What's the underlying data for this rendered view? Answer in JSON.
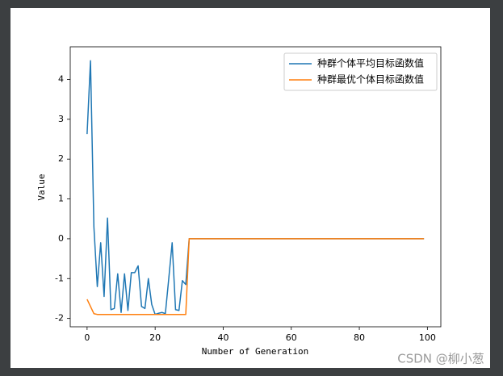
{
  "chart_data": {
    "type": "line",
    "xlabel": "Number of Generation",
    "ylabel": "Value",
    "x": [
      0,
      1,
      2,
      3,
      4,
      5,
      6,
      7,
      8,
      9,
      10,
      11,
      12,
      13,
      14,
      15,
      16,
      17,
      18,
      19,
      20,
      21,
      22,
      23,
      24,
      25,
      26,
      27,
      28,
      29,
      30,
      31,
      32,
      33,
      34,
      35,
      36,
      37,
      38,
      39,
      40,
      41,
      42,
      43,
      44,
      45,
      46,
      47,
      48,
      49,
      50,
      51,
      52,
      53,
      54,
      55,
      56,
      57,
      58,
      59,
      60,
      61,
      62,
      63,
      64,
      65,
      66,
      67,
      68,
      69,
      70,
      71,
      72,
      73,
      74,
      75,
      76,
      77,
      78,
      79,
      80,
      81,
      82,
      83,
      84,
      85,
      86,
      87,
      88,
      89,
      90,
      91,
      92,
      93,
      94,
      95,
      96,
      97,
      98,
      99
    ],
    "series": [
      {
        "name": "种群个体平均目标函数值",
        "color": "#1f77b4",
        "values": [
          2.63,
          4.47,
          0.3,
          -1.2,
          -0.1,
          -1.45,
          0.52,
          -1.78,
          -1.75,
          -0.88,
          -1.85,
          -0.88,
          -1.8,
          -0.85,
          -0.85,
          -0.68,
          -1.7,
          -1.75,
          -1.0,
          -1.65,
          -1.9,
          -1.87,
          -1.85,
          -1.88,
          -1.0,
          -0.1,
          -1.78,
          -1.8,
          -1.05,
          -1.15,
          0,
          0,
          0,
          0,
          0,
          0,
          0,
          0,
          0,
          0,
          0,
          0,
          0,
          0,
          0,
          0,
          0,
          0,
          0,
          0,
          0,
          0,
          0,
          0,
          0,
          0,
          0,
          0,
          0,
          0,
          0,
          0,
          0,
          0,
          0,
          0,
          0,
          0,
          0,
          0,
          0,
          0,
          0,
          0,
          0,
          0,
          0,
          0,
          0,
          0,
          0,
          0,
          0,
          0,
          0,
          0,
          0,
          0,
          0,
          0,
          0,
          0,
          0,
          0,
          0,
          0,
          0,
          0,
          0,
          0
        ]
      },
      {
        "name": "种群最优个体目标函数值",
        "color": "#ff7f0e",
        "values": [
          -1.52,
          -1.7,
          -1.88,
          -1.9,
          -1.9,
          -1.9,
          -1.9,
          -1.9,
          -1.9,
          -1.9,
          -1.9,
          -1.9,
          -1.9,
          -1.9,
          -1.9,
          -1.9,
          -1.9,
          -1.9,
          -1.9,
          -1.9,
          -1.9,
          -1.9,
          -1.9,
          -1.9,
          -1.9,
          -1.9,
          -1.9,
          -1.9,
          -1.9,
          -1.9,
          0,
          0,
          0,
          0,
          0,
          0,
          0,
          0,
          0,
          0,
          0,
          0,
          0,
          0,
          0,
          0,
          0,
          0,
          0,
          0,
          0,
          0,
          0,
          0,
          0,
          0,
          0,
          0,
          0,
          0,
          0,
          0,
          0,
          0,
          0,
          0,
          0,
          0,
          0,
          0,
          0,
          0,
          0,
          0,
          0,
          0,
          0,
          0,
          0,
          0,
          0,
          0,
          0,
          0,
          0,
          0,
          0,
          0,
          0,
          0,
          0,
          0,
          0,
          0,
          0,
          0,
          0,
          0,
          0,
          0
        ]
      }
    ],
    "xlim": [
      -4.95,
      103.95
    ],
    "xticks": [
      0,
      20,
      40,
      60,
      80,
      100
    ],
    "ylim": [
      -2.21,
      4.82
    ],
    "yticks": [
      -2,
      -1,
      0,
      1,
      2,
      3,
      4
    ],
    "grid": false,
    "legend": "upper right",
    "watermark": "CSDN @柳小葱"
  }
}
